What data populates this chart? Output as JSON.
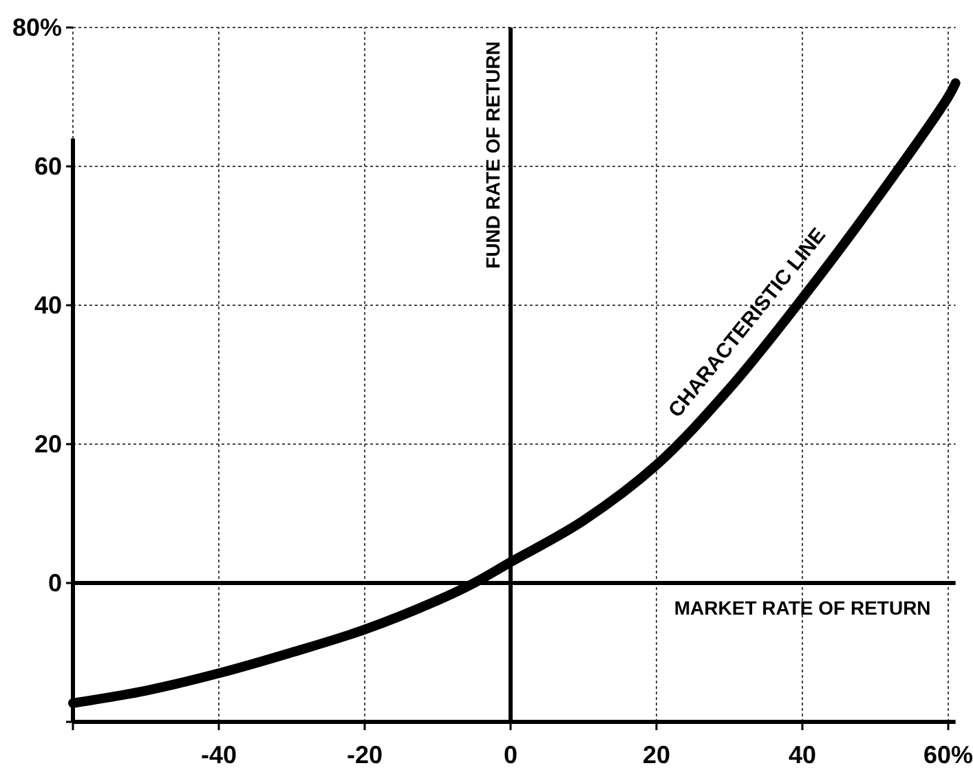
{
  "chart_data": {
    "type": "line",
    "x": [
      -60,
      -50,
      -40,
      -30,
      -20,
      -10,
      -5,
      0,
      10,
      20,
      30,
      40,
      50,
      60,
      61
    ],
    "series": [
      {
        "name": "CHARACTERISTIC LINE",
        "color": "#000000",
        "values": [
          -17.3,
          -15.5,
          -13,
          -10,
          -6.7,
          -2.5,
          0,
          3,
          9,
          17,
          28,
          41,
          55,
          70,
          72
        ]
      }
    ],
    "xlim": [
      -60,
      61
    ],
    "ylim": [
      -20,
      80
    ],
    "xticks": [
      {
        "value": -60,
        "label": null
      },
      -40,
      -20,
      0,
      20,
      40,
      {
        "value": 60,
        "label": "60%"
      }
    ],
    "yticks": [
      {
        "value": -20,
        "label": null
      },
      0,
      20,
      40,
      60,
      {
        "value": 80,
        "label": "80%"
      }
    ],
    "grid": true,
    "marker": "none",
    "line_style": "solid",
    "legend": false,
    "xlabel": "MARKET RATE OF RETURN",
    "ylabel": "FUND RATE OF RETURN"
  }
}
